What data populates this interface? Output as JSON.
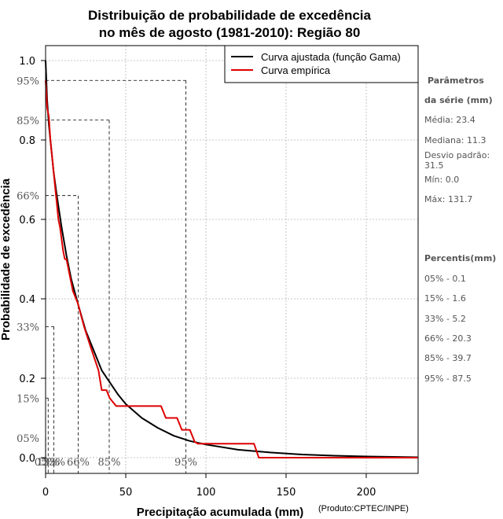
{
  "chart_data": {
    "type": "line",
    "title_line1": "Distribuição de probabilidade de excedência",
    "title_line2": "no mês de agosto (1981-2010): Região 80",
    "xlabel": "Precipitação acumulada (mm)",
    "ylabel": "Probabilidade de excedência",
    "credit": "(Produto:CPTEC/INPE)",
    "xlim": [
      0,
      232
    ],
    "ylim": [
      0,
      1.0
    ],
    "x_ticks": [
      0,
      50,
      100,
      150,
      200
    ],
    "y_ticks": [
      0.0,
      0.2,
      0.4,
      0.6,
      0.8,
      1.0
    ],
    "y_tick_labels": [
      "0.0",
      "0.2",
      "0.4",
      "0.6",
      "0.8",
      "1.0"
    ],
    "percentile_y": [
      0.05,
      0.15,
      0.33,
      0.66,
      0.85,
      0.95
    ],
    "percentile_y_labels": [
      "05%",
      "15%",
      "33%",
      "66%",
      "85%",
      "95%"
    ],
    "percentile_x": [
      0.1,
      1.6,
      5.2,
      20.3,
      39.7,
      87.5
    ],
    "percentile_x_labels": [
      "05%",
      "15%",
      "33%",
      "66%",
      "85%",
      "95%"
    ],
    "legend": [
      "Curva ajustada (função Gama)",
      "Curva empírica"
    ],
    "series": [
      {
        "name": "Curva ajustada (função Gama)",
        "color": "#000000",
        "x": [
          0,
          1,
          2,
          3,
          5,
          7,
          10,
          13,
          16,
          20,
          25,
          30,
          35,
          40,
          45,
          50,
          60,
          70,
          80,
          90,
          100,
          120,
          140,
          160,
          180,
          200,
          232
        ],
        "y": [
          1.0,
          0.9,
          0.84,
          0.8,
          0.72,
          0.66,
          0.58,
          0.51,
          0.45,
          0.39,
          0.32,
          0.27,
          0.22,
          0.19,
          0.16,
          0.135,
          0.1,
          0.075,
          0.055,
          0.042,
          0.033,
          0.02,
          0.013,
          0.008,
          0.005,
          0.003,
          0.001
        ]
      },
      {
        "name": "Curva empírica",
        "color": "#dd0000",
        "x": [
          0,
          0.5,
          1,
          2,
          3,
          4,
          5,
          6,
          7,
          8,
          9,
          10,
          11,
          12,
          13,
          14,
          15,
          17,
          20,
          22,
          24,
          28,
          33,
          35,
          38,
          40,
          44,
          48,
          52,
          60,
          70,
          72,
          75,
          80,
          82,
          85,
          88,
          90,
          93,
          95,
          100,
          105,
          120,
          125,
          130,
          133,
          140,
          160,
          180,
          200,
          232
        ],
        "y": [
          0.95,
          0.92,
          0.88,
          0.86,
          0.8,
          0.76,
          0.72,
          0.68,
          0.64,
          0.6,
          0.58,
          0.55,
          0.52,
          0.5,
          0.5,
          0.48,
          0.46,
          0.42,
          0.39,
          0.36,
          0.33,
          0.28,
          0.22,
          0.17,
          0.17,
          0.15,
          0.13,
          0.13,
          0.13,
          0.13,
          0.13,
          0.13,
          0.1,
          0.1,
          0.1,
          0.07,
          0.07,
          0.07,
          0.04,
          0.035,
          0.035,
          0.035,
          0.035,
          0.035,
          0.035,
          0.0,
          0.0,
          0.0,
          0.0,
          0.0,
          0.0
        ]
      }
    ]
  },
  "stats": {
    "title_line1": "Parâmetros",
    "title_line2": "da série (mm)",
    "media": "Média: 23.4",
    "mediana": "Mediana: 11.3",
    "desvio": "Desvio padrão: 31.5",
    "min": "Mín: 0.0",
    "max": "Máx: 131.7"
  },
  "percentis": {
    "title": "Percentis(mm)",
    "items": [
      "05% - 0.1",
      "15% - 1.6",
      "33% - 5.2",
      "66% - 20.3",
      "85% - 39.7",
      "95% - 87.5"
    ]
  }
}
